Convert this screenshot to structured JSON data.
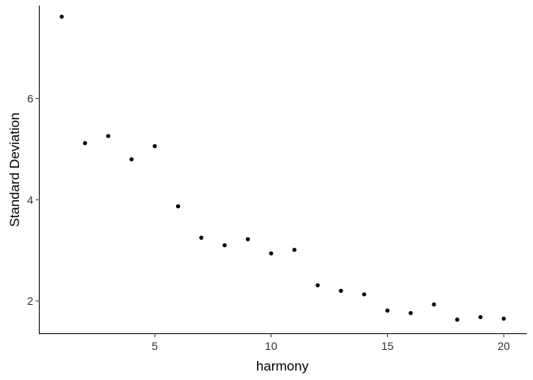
{
  "chart_data": {
    "type": "scatter",
    "title": "",
    "xlabel": "harmony",
    "ylabel": "Standard Deviation",
    "xlim": [
      0.05,
      20.95
    ],
    "ylim": [
      1.36,
      7.84
    ],
    "x_ticks": [
      5,
      10,
      15,
      20
    ],
    "y_ticks": [
      2,
      4,
      6
    ],
    "grid": false,
    "legend": "none",
    "point_color": "#000000",
    "series": [
      {
        "x": [
          1,
          2,
          3,
          4,
          5,
          6,
          7,
          8,
          9,
          10,
          11,
          12,
          13,
          14,
          15,
          16,
          17,
          18,
          19,
          20
        ],
        "y": [
          7.62,
          5.12,
          5.26,
          4.8,
          5.06,
          3.87,
          3.25,
          3.1,
          3.22,
          2.94,
          3.01,
          2.31,
          2.2,
          2.13,
          1.81,
          1.76,
          1.93,
          1.63,
          1.68,
          1.65
        ]
      }
    ]
  }
}
